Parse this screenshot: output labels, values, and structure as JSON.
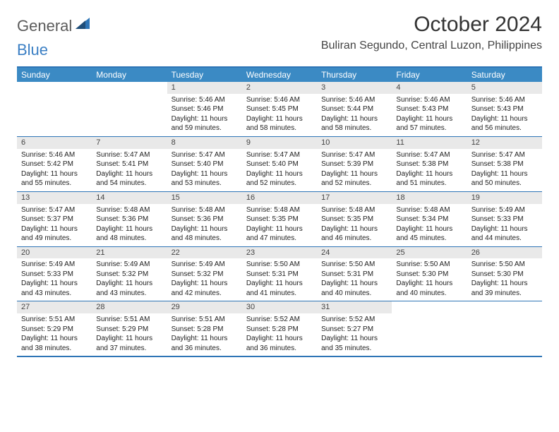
{
  "brand": {
    "part1": "General",
    "part2": "Blue"
  },
  "title": "October 2024",
  "location": "Buliran Segundo, Central Luzon, Philippines",
  "colors": {
    "header_bg": "#3b8ac4",
    "border": "#2e75b6",
    "daybar": "#e9e9e9",
    "brand_gray": "#5b5b5b",
    "brand_blue": "#3b7fc4"
  },
  "weekdays": [
    "Sunday",
    "Monday",
    "Tuesday",
    "Wednesday",
    "Thursday",
    "Friday",
    "Saturday"
  ],
  "weeks": [
    [
      {
        "empty": true
      },
      {
        "empty": true
      },
      {
        "num": "1",
        "sunrise": "Sunrise: 5:46 AM",
        "sunset": "Sunset: 5:46 PM",
        "daylight1": "Daylight: 11 hours",
        "daylight2": "and 59 minutes."
      },
      {
        "num": "2",
        "sunrise": "Sunrise: 5:46 AM",
        "sunset": "Sunset: 5:45 PM",
        "daylight1": "Daylight: 11 hours",
        "daylight2": "and 58 minutes."
      },
      {
        "num": "3",
        "sunrise": "Sunrise: 5:46 AM",
        "sunset": "Sunset: 5:44 PM",
        "daylight1": "Daylight: 11 hours",
        "daylight2": "and 58 minutes."
      },
      {
        "num": "4",
        "sunrise": "Sunrise: 5:46 AM",
        "sunset": "Sunset: 5:43 PM",
        "daylight1": "Daylight: 11 hours",
        "daylight2": "and 57 minutes."
      },
      {
        "num": "5",
        "sunrise": "Sunrise: 5:46 AM",
        "sunset": "Sunset: 5:43 PM",
        "daylight1": "Daylight: 11 hours",
        "daylight2": "and 56 minutes."
      }
    ],
    [
      {
        "num": "6",
        "sunrise": "Sunrise: 5:46 AM",
        "sunset": "Sunset: 5:42 PM",
        "daylight1": "Daylight: 11 hours",
        "daylight2": "and 55 minutes."
      },
      {
        "num": "7",
        "sunrise": "Sunrise: 5:47 AM",
        "sunset": "Sunset: 5:41 PM",
        "daylight1": "Daylight: 11 hours",
        "daylight2": "and 54 minutes."
      },
      {
        "num": "8",
        "sunrise": "Sunrise: 5:47 AM",
        "sunset": "Sunset: 5:40 PM",
        "daylight1": "Daylight: 11 hours",
        "daylight2": "and 53 minutes."
      },
      {
        "num": "9",
        "sunrise": "Sunrise: 5:47 AM",
        "sunset": "Sunset: 5:40 PM",
        "daylight1": "Daylight: 11 hours",
        "daylight2": "and 52 minutes."
      },
      {
        "num": "10",
        "sunrise": "Sunrise: 5:47 AM",
        "sunset": "Sunset: 5:39 PM",
        "daylight1": "Daylight: 11 hours",
        "daylight2": "and 52 minutes."
      },
      {
        "num": "11",
        "sunrise": "Sunrise: 5:47 AM",
        "sunset": "Sunset: 5:38 PM",
        "daylight1": "Daylight: 11 hours",
        "daylight2": "and 51 minutes."
      },
      {
        "num": "12",
        "sunrise": "Sunrise: 5:47 AM",
        "sunset": "Sunset: 5:38 PM",
        "daylight1": "Daylight: 11 hours",
        "daylight2": "and 50 minutes."
      }
    ],
    [
      {
        "num": "13",
        "sunrise": "Sunrise: 5:47 AM",
        "sunset": "Sunset: 5:37 PM",
        "daylight1": "Daylight: 11 hours",
        "daylight2": "and 49 minutes."
      },
      {
        "num": "14",
        "sunrise": "Sunrise: 5:48 AM",
        "sunset": "Sunset: 5:36 PM",
        "daylight1": "Daylight: 11 hours",
        "daylight2": "and 48 minutes."
      },
      {
        "num": "15",
        "sunrise": "Sunrise: 5:48 AM",
        "sunset": "Sunset: 5:36 PM",
        "daylight1": "Daylight: 11 hours",
        "daylight2": "and 48 minutes."
      },
      {
        "num": "16",
        "sunrise": "Sunrise: 5:48 AM",
        "sunset": "Sunset: 5:35 PM",
        "daylight1": "Daylight: 11 hours",
        "daylight2": "and 47 minutes."
      },
      {
        "num": "17",
        "sunrise": "Sunrise: 5:48 AM",
        "sunset": "Sunset: 5:35 PM",
        "daylight1": "Daylight: 11 hours",
        "daylight2": "and 46 minutes."
      },
      {
        "num": "18",
        "sunrise": "Sunrise: 5:48 AM",
        "sunset": "Sunset: 5:34 PM",
        "daylight1": "Daylight: 11 hours",
        "daylight2": "and 45 minutes."
      },
      {
        "num": "19",
        "sunrise": "Sunrise: 5:49 AM",
        "sunset": "Sunset: 5:33 PM",
        "daylight1": "Daylight: 11 hours",
        "daylight2": "and 44 minutes."
      }
    ],
    [
      {
        "num": "20",
        "sunrise": "Sunrise: 5:49 AM",
        "sunset": "Sunset: 5:33 PM",
        "daylight1": "Daylight: 11 hours",
        "daylight2": "and 43 minutes."
      },
      {
        "num": "21",
        "sunrise": "Sunrise: 5:49 AM",
        "sunset": "Sunset: 5:32 PM",
        "daylight1": "Daylight: 11 hours",
        "daylight2": "and 43 minutes."
      },
      {
        "num": "22",
        "sunrise": "Sunrise: 5:49 AM",
        "sunset": "Sunset: 5:32 PM",
        "daylight1": "Daylight: 11 hours",
        "daylight2": "and 42 minutes."
      },
      {
        "num": "23",
        "sunrise": "Sunrise: 5:50 AM",
        "sunset": "Sunset: 5:31 PM",
        "daylight1": "Daylight: 11 hours",
        "daylight2": "and 41 minutes."
      },
      {
        "num": "24",
        "sunrise": "Sunrise: 5:50 AM",
        "sunset": "Sunset: 5:31 PM",
        "daylight1": "Daylight: 11 hours",
        "daylight2": "and 40 minutes."
      },
      {
        "num": "25",
        "sunrise": "Sunrise: 5:50 AM",
        "sunset": "Sunset: 5:30 PM",
        "daylight1": "Daylight: 11 hours",
        "daylight2": "and 40 minutes."
      },
      {
        "num": "26",
        "sunrise": "Sunrise: 5:50 AM",
        "sunset": "Sunset: 5:30 PM",
        "daylight1": "Daylight: 11 hours",
        "daylight2": "and 39 minutes."
      }
    ],
    [
      {
        "num": "27",
        "sunrise": "Sunrise: 5:51 AM",
        "sunset": "Sunset: 5:29 PM",
        "daylight1": "Daylight: 11 hours",
        "daylight2": "and 38 minutes."
      },
      {
        "num": "28",
        "sunrise": "Sunrise: 5:51 AM",
        "sunset": "Sunset: 5:29 PM",
        "daylight1": "Daylight: 11 hours",
        "daylight2": "and 37 minutes."
      },
      {
        "num": "29",
        "sunrise": "Sunrise: 5:51 AM",
        "sunset": "Sunset: 5:28 PM",
        "daylight1": "Daylight: 11 hours",
        "daylight2": "and 36 minutes."
      },
      {
        "num": "30",
        "sunrise": "Sunrise: 5:52 AM",
        "sunset": "Sunset: 5:28 PM",
        "daylight1": "Daylight: 11 hours",
        "daylight2": "and 36 minutes."
      },
      {
        "num": "31",
        "sunrise": "Sunrise: 5:52 AM",
        "sunset": "Sunset: 5:27 PM",
        "daylight1": "Daylight: 11 hours",
        "daylight2": "and 35 minutes."
      },
      {
        "empty": true
      },
      {
        "empty": true
      }
    ]
  ]
}
